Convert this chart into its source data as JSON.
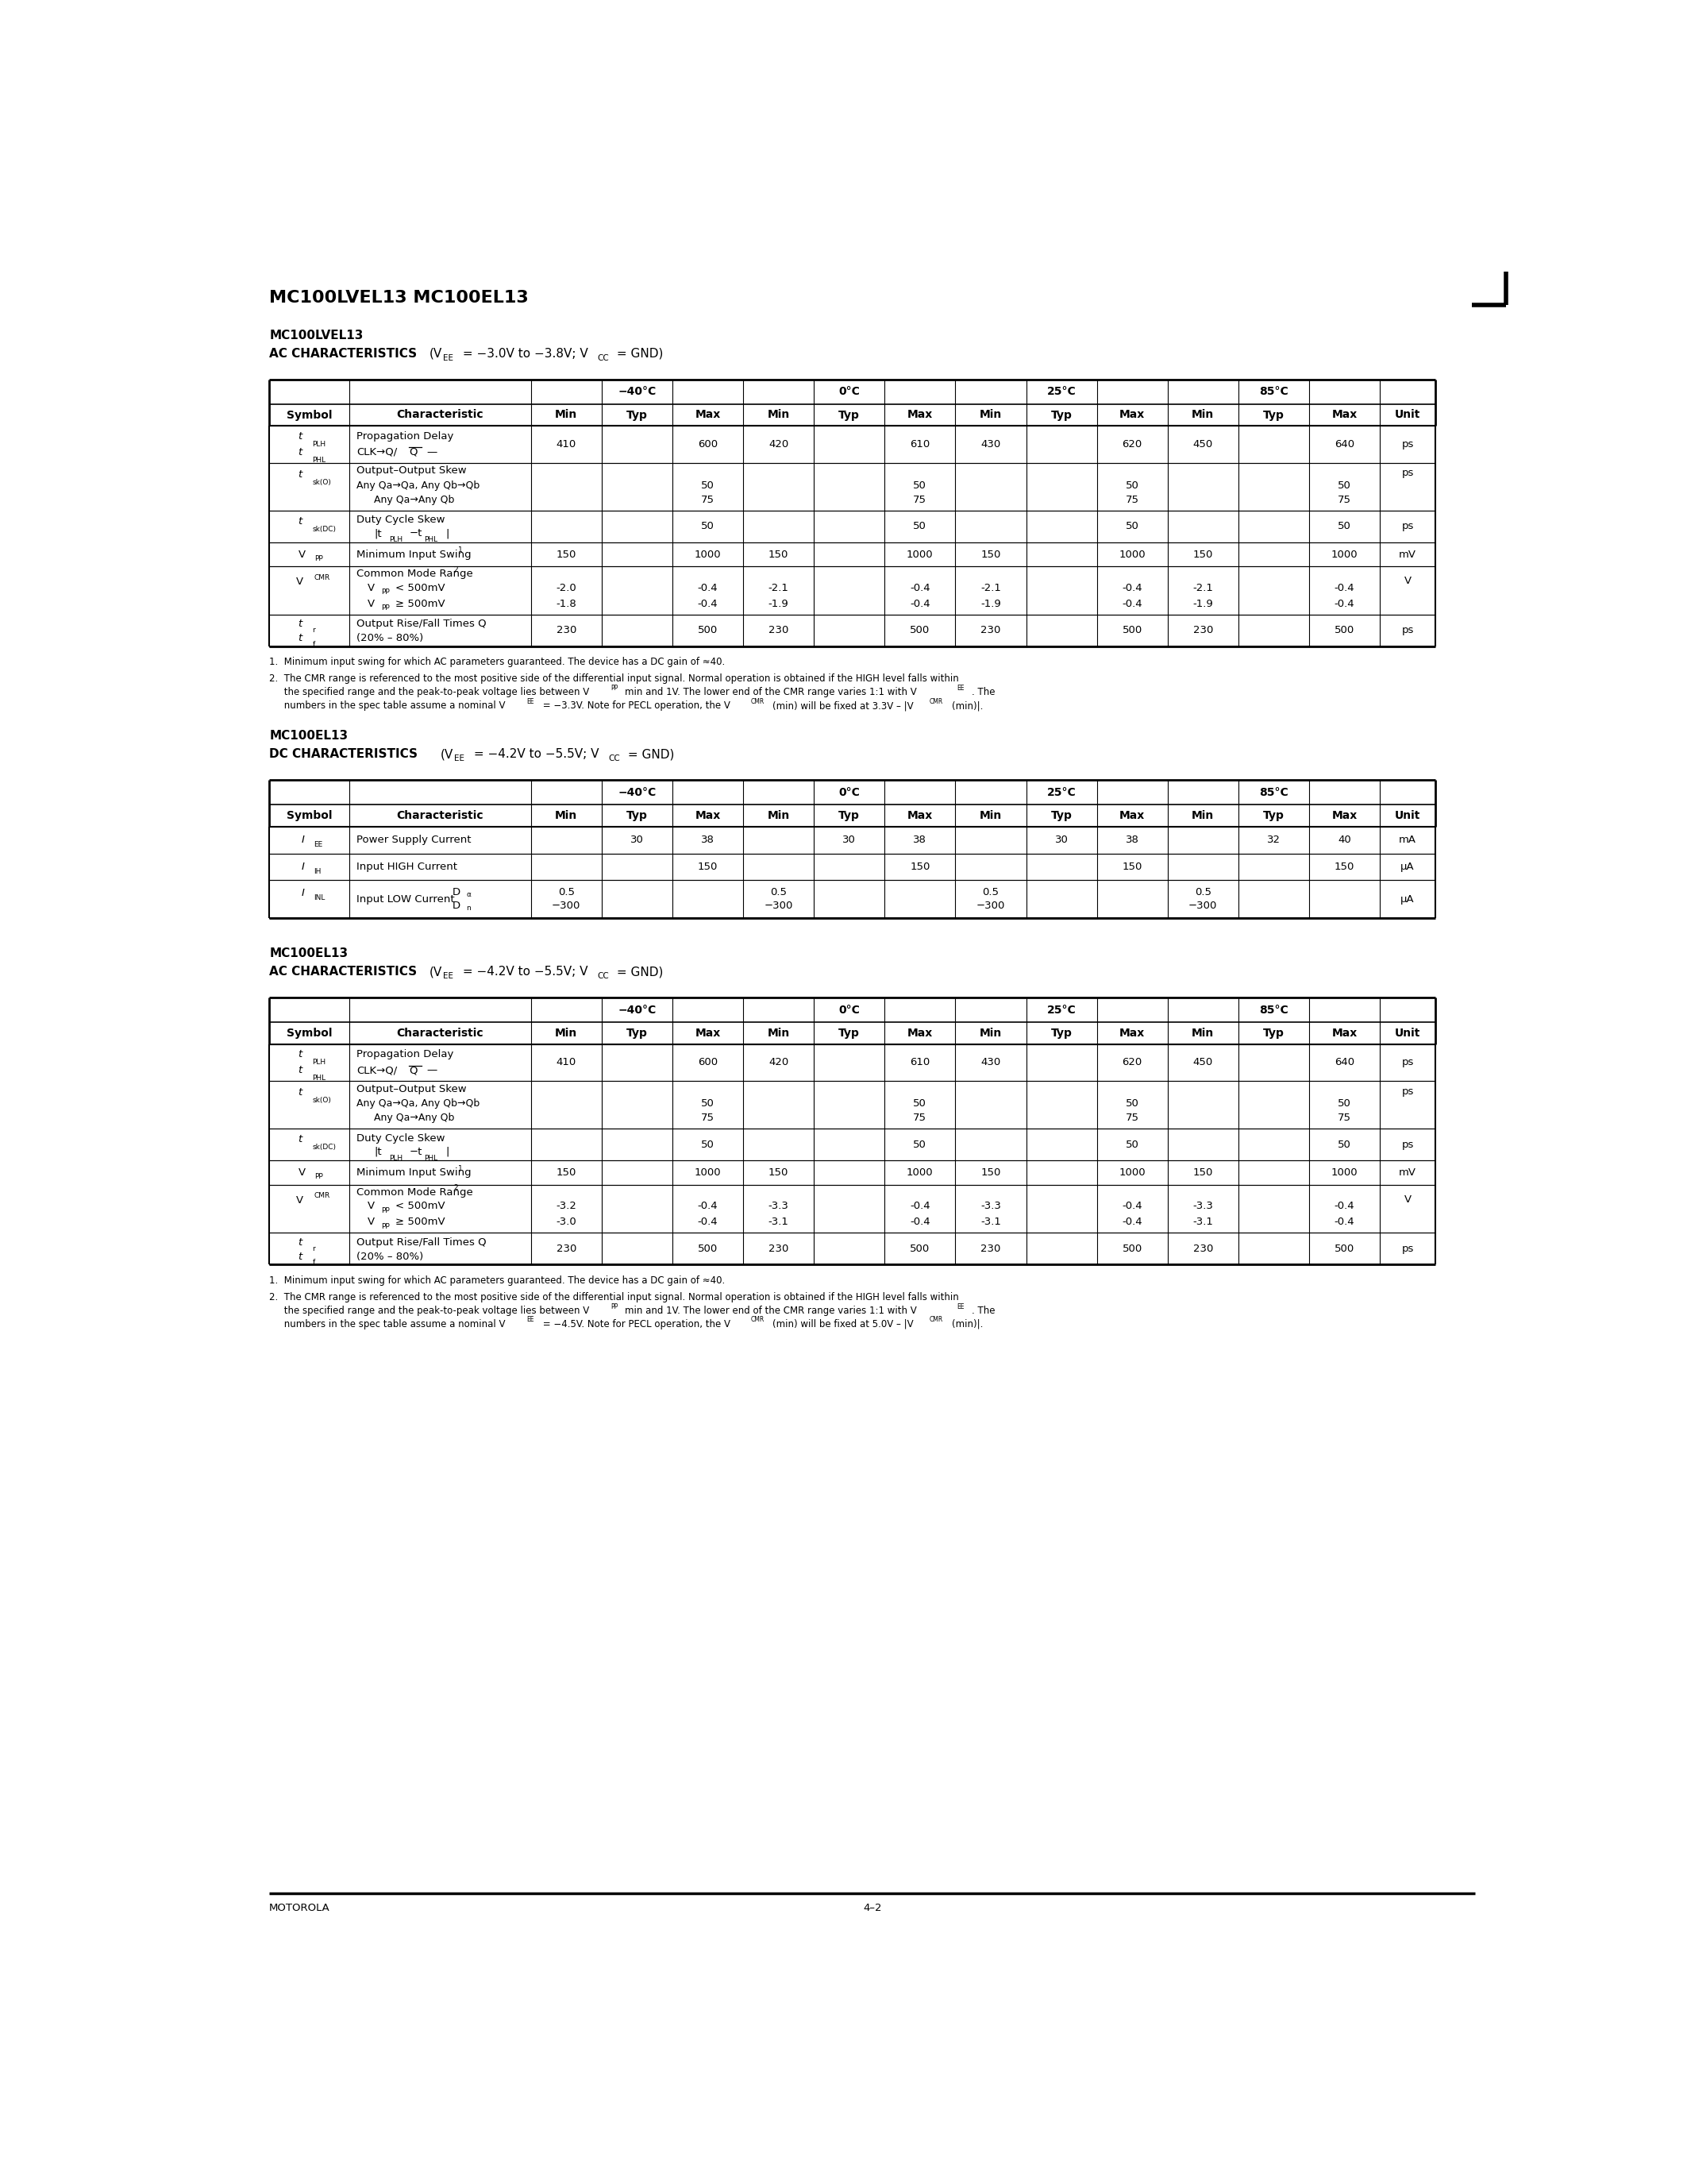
{
  "page_title": "MC100LVEL13 MC100EL13",
  "footer_left": "MOTOROLA",
  "footer_center": "4–2"
}
